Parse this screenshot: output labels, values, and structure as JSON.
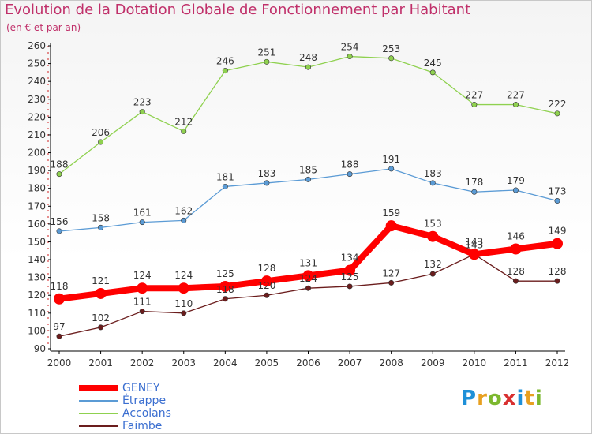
{
  "title": "Evolution de la Dotation Globale de Fonctionnement par Habitant",
  "subtitle": "(en € et par an)",
  "logo": {
    "letters": [
      "P",
      "r",
      "o",
      "x",
      "i",
      "t",
      "i"
    ],
    "colors": [
      "#1e90d8",
      "#e8a020",
      "#7cb82e",
      "#d83030",
      "#1e90d8",
      "#e8a020",
      "#7cb82e"
    ]
  },
  "chart_data": {
    "type": "line",
    "title": "Evolution de la Dotation Globale de Fonctionnement par Habitant",
    "subtitle": "(en € et par an)",
    "x": [
      "2000",
      "2001",
      "2002",
      "2003",
      "2004",
      "2005",
      "2006",
      "2007",
      "2008",
      "2009",
      "2010",
      "2011",
      "2012"
    ],
    "yticks": [
      "90",
      "100",
      "110",
      "120",
      "130",
      "140",
      "150",
      "160",
      "170",
      "180",
      "190",
      "200",
      "210",
      "220",
      "230",
      "240",
      "250",
      "260"
    ],
    "ylim": [
      90,
      260
    ],
    "grid": false,
    "legend_position": "bottom-left",
    "series": [
      {
        "name": "GENEY",
        "color": "#ff0000",
        "values": [
          118,
          121,
          124,
          124,
          125,
          128,
          131,
          134,
          159,
          153,
          143,
          146,
          149
        ],
        "labels": [
          "118",
          "121",
          "124",
          "124",
          "125",
          "128",
          "131",
          "134",
          "159",
          "153",
          "143",
          "146",
          "149"
        ]
      },
      {
        "name": "Étrappe",
        "color": "#5b9bd5",
        "values": [
          156,
          158,
          161,
          162,
          181,
          183,
          185,
          188,
          191,
          183,
          178,
          179,
          173
        ],
        "labels": [
          "156",
          "158",
          "161",
          "162",
          "181",
          "183",
          "185",
          "188",
          "191",
          "183",
          "178",
          "179",
          "173"
        ]
      },
      {
        "name": "Accolans",
        "color": "#8fd14f",
        "values": [
          188,
          206,
          223,
          212,
          246,
          251,
          248,
          254,
          253,
          245,
          227,
          227,
          222
        ],
        "labels": [
          "188",
          "206",
          "223",
          "212",
          "246",
          "251",
          "248",
          "254",
          "253",
          "245",
          "227",
          "227",
          "222"
        ]
      },
      {
        "name": "Faimbe",
        "color": "#6b1d1d",
        "values": [
          97,
          102,
          111,
          110,
          118,
          120,
          124,
          125,
          127,
          132,
          143,
          128,
          128
        ],
        "labels": [
          "97",
          "102",
          "111",
          "110",
          "118",
          "120",
          "124",
          "125",
          "127",
          "132",
          "143",
          "128",
          "128"
        ]
      }
    ]
  }
}
